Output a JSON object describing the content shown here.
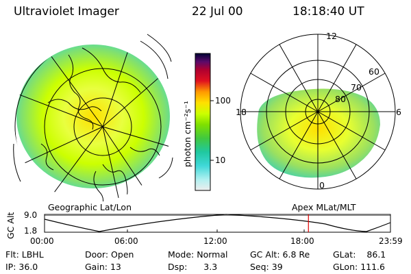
{
  "header": {
    "title": "Ultraviolet Imager",
    "date": "22 Jul 00",
    "time": "18:18:40 UT"
  },
  "left_panel": {
    "caption": "Geographic Lat/Lon"
  },
  "right_panel": {
    "caption": "Apex MLat/MLT",
    "mlt_labels": [
      "12",
      "18",
      "6",
      "0"
    ],
    "lat_labels": [
      "60",
      "70",
      "80"
    ]
  },
  "colorbar": {
    "unit_label": "photon cm⁻²s⁻¹",
    "ticks": [
      "100",
      "10"
    ],
    "colors": [
      "#000033",
      "#4b0082",
      "#7a0a7a",
      "#b00030",
      "#e01020",
      "#ff6600",
      "#ffb000",
      "#ffe000",
      "#ccff00",
      "#7fe000",
      "#40c840",
      "#20c8a0",
      "#40d8d8",
      "#b0f0f0",
      "#eeeeee"
    ]
  },
  "altitude_plot": {
    "ylabel": "GC Alt",
    "y_ticks": [
      "9.0",
      "1.8"
    ],
    "x_ticks": [
      "00:00",
      "06:00",
      "12:00",
      "18:00",
      "23:59"
    ],
    "current_time_marker_hours": 18.31,
    "marker_color": "#e00000"
  },
  "status": {
    "row1": [
      {
        "key": "Flt:",
        "val": "LBHL"
      },
      {
        "key": "Door:",
        "val": "Open"
      },
      {
        "key": "Mode:",
        "val": "Normal"
      },
      {
        "key": "GC Alt:",
        "val": "6.8 Re"
      },
      {
        "key": "GLat:",
        "val": "86.1"
      }
    ],
    "row2": [
      {
        "key": "IP:",
        "val": "36.0"
      },
      {
        "key": "Gain:",
        "val": "13"
      },
      {
        "key": "Dsp:",
        "val": "3.3"
      },
      {
        "key": "Seq:",
        "val": "39"
      },
      {
        "key": "GLon:",
        "val": "111.6"
      }
    ]
  }
}
